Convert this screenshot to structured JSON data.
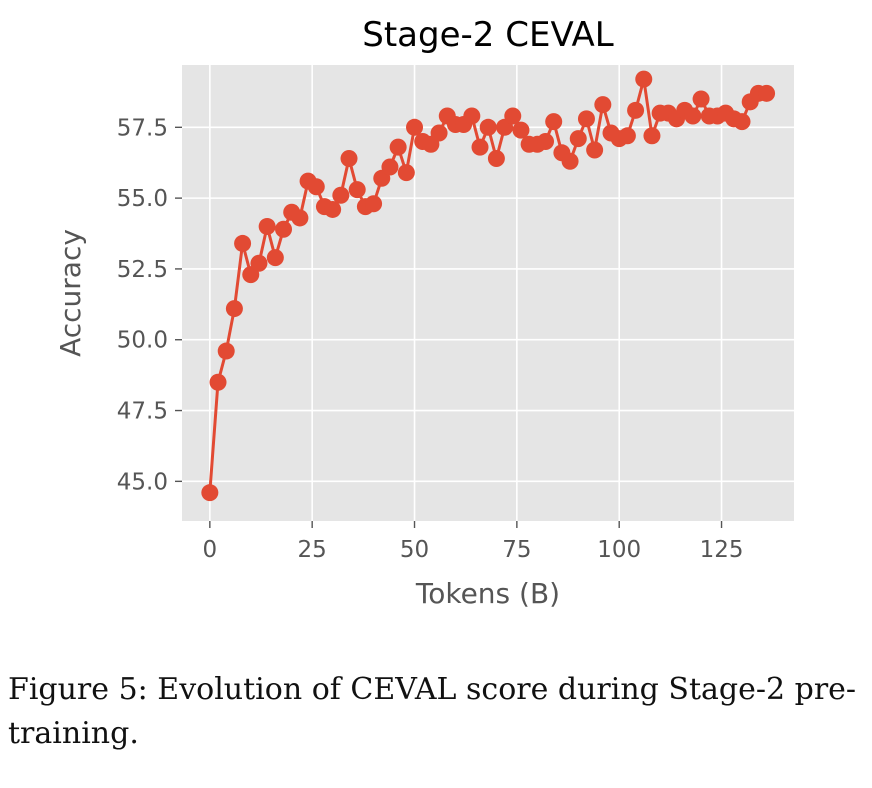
{
  "caption": "Figure 5: Evolution of CEVAL score during Stage-2 pre-training.",
  "chart_data": {
    "type": "line",
    "title": "Stage-2 CEVAL",
    "xlabel": "Tokens (B)",
    "ylabel": "Accuracy",
    "xlim": [
      -6.8,
      142.7
    ],
    "ylim": [
      43.6,
      59.7
    ],
    "xticks": [
      0,
      25,
      50,
      75,
      100,
      125
    ],
    "yticks": [
      45.0,
      47.5,
      50.0,
      52.5,
      55.0,
      57.5
    ],
    "xtick_labels": [
      "0",
      "25",
      "50",
      "75",
      "100",
      "125"
    ],
    "ytick_labels": [
      "45.0",
      "47.5",
      "50.0",
      "52.5",
      "55.0",
      "57.5"
    ],
    "grid": true,
    "style": "ggplot",
    "colors": {
      "line": "#E24A33",
      "plot_bg": "#E5E5E5",
      "grid": "#FFFFFF",
      "text": "#555555"
    },
    "x": [
      0,
      2,
      4,
      6,
      8,
      10,
      12,
      14,
      16,
      18,
      20,
      22,
      24,
      26,
      28,
      30,
      32,
      34,
      36,
      38,
      40,
      42,
      44,
      46,
      48,
      50,
      52,
      54,
      56,
      58,
      60,
      62,
      64,
      66,
      68,
      70,
      72,
      74,
      76,
      78,
      80,
      82,
      84,
      86,
      88,
      90,
      92,
      94,
      96,
      98,
      100,
      102,
      104,
      106,
      108,
      110,
      112,
      114,
      116,
      118,
      120,
      122,
      124,
      126,
      128,
      130,
      132,
      134,
      136
    ],
    "y": [
      44.6,
      48.5,
      49.6,
      51.1,
      53.4,
      52.3,
      52.7,
      54.0,
      52.9,
      53.9,
      54.5,
      54.3,
      55.6,
      55.4,
      54.7,
      54.6,
      55.1,
      56.4,
      55.3,
      54.7,
      54.8,
      55.7,
      56.1,
      56.8,
      55.9,
      57.5,
      57.0,
      56.9,
      57.3,
      57.9,
      57.6,
      57.6,
      57.9,
      56.8,
      57.5,
      56.4,
      57.5,
      57.9,
      57.4,
      56.9,
      56.9,
      57.0,
      57.7,
      56.6,
      56.3,
      57.1,
      57.8,
      56.7,
      58.3,
      57.3,
      57.1,
      57.2,
      58.1,
      59.2,
      57.2,
      58.0,
      58.0,
      57.8,
      58.1,
      57.9,
      58.5,
      57.9,
      57.9,
      58.0,
      57.8,
      57.7,
      58.4,
      58.7,
      58.7
    ]
  }
}
